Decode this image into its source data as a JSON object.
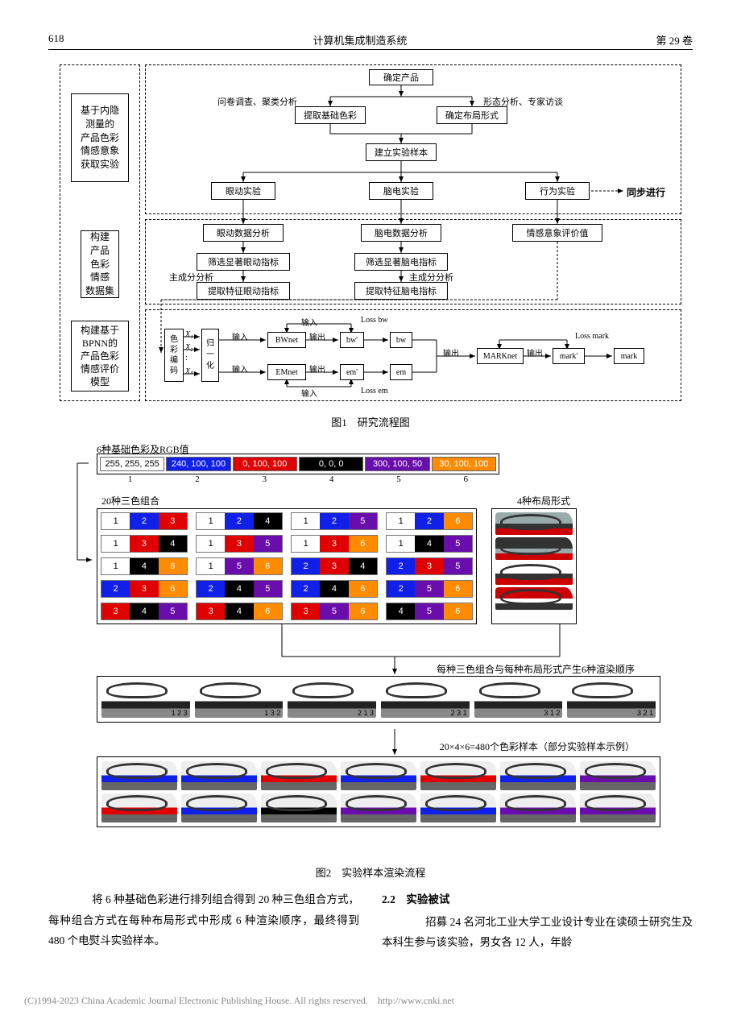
{
  "header": {
    "page_no": "618",
    "journal": "计算机集成制造系统",
    "vol": "第 29 卷"
  },
  "fig1": {
    "panel1_label": "基于内隐\n测量的\n产品色彩\n情感意象\n获取实验",
    "panel2_label": "构建\n产品\n色彩\n情感\n数据集",
    "panel3_label": "构建基于\nBPNN的\n产品色彩\n情感评价\n模型",
    "n_determine": "确定产品",
    "e_survey": "问卷调查、聚类分析",
    "e_shape": "形态分析、专家访谈",
    "n_extract_color": "提取基础色彩",
    "n_layout": "确定布局形式",
    "n_build_sample": "建立实验样本",
    "n_eye_exp": "眼动实验",
    "n_eeg_exp": "脑电实验",
    "n_behav_exp": "行为实验",
    "t_sync": "同步进行",
    "n_eye_data": "眼动数据分析",
    "n_eeg_data": "脑电数据分析",
    "n_emotion_val": "情感意象评价值",
    "n_eye_sig": "筛选显著眼动指标",
    "n_eeg_sig": "筛选显著脑电指标",
    "t_pca1": "主成分分析",
    "t_pca2": "主成分分析",
    "n_eye_feat": "提取特征眼动指标",
    "n_eeg_feat": "提取特征脑电指标",
    "n_color_code": "色\n彩\n编\n码",
    "n_norm": "归\n一\n化",
    "t_x1": "X₁",
    "t_x2": "X₂",
    "t_xn": "Xₙ",
    "t_dots": ":",
    "t_input": "输入",
    "t_output": "输出",
    "n_bwnet": "BWnet",
    "n_emnet": "EMnet",
    "n_marknet": "MARKnet",
    "n_bwp": "bw'",
    "n_bw": "bw",
    "n_emp": "em'",
    "n_em": "em",
    "n_markp": "mark'",
    "n_mark": "mark",
    "t_lossbw": "Loss bw",
    "t_lossem": "Loss em",
    "t_lossmark": "Loss mark",
    "caption": "图1　研究流程图"
  },
  "fig2": {
    "title_colors": "6种基础色彩及RGB值",
    "swatches": [
      {
        "rgb": "255, 255, 255",
        "hex": "#ffffff",
        "fg": "#000",
        "num": "1"
      },
      {
        "rgb": "240, 100, 100",
        "hex": "#1020e8",
        "fg": "#fff",
        "num": "2"
      },
      {
        "rgb": "0, 100, 100",
        "hex": "#e00000",
        "fg": "#fff",
        "num": "3"
      },
      {
        "rgb": "0, 0, 0",
        "hex": "#000000",
        "fg": "#fff",
        "num": "4"
      },
      {
        "rgb": "300, 100, 50",
        "hex": "#6a0dad",
        "fg": "#fff",
        "num": "5"
      },
      {
        "rgb": "30, 100, 100",
        "hex": "#ff8c00",
        "fg": "#fff",
        "num": "6"
      }
    ],
    "title_combos": "20种三色组合",
    "title_layouts": "4种布局形式",
    "combos": [
      [
        1,
        2,
        3
      ],
      [
        1,
        2,
        4
      ],
      [
        1,
        2,
        5
      ],
      [
        1,
        2,
        6
      ],
      [
        1,
        3,
        4
      ],
      [
        1,
        3,
        5
      ],
      [
        1,
        3,
        6
      ],
      [
        1,
        4,
        5
      ],
      [
        1,
        4,
        6
      ],
      [
        1,
        5,
        6
      ],
      [
        2,
        3,
        4
      ],
      [
        2,
        3,
        5
      ],
      [
        2,
        3,
        6
      ],
      [
        2,
        4,
        5
      ],
      [
        2,
        4,
        6
      ],
      [
        2,
        5,
        6
      ],
      [
        3,
        4,
        5
      ],
      [
        3,
        4,
        6
      ],
      [
        3,
        5,
        6
      ],
      [
        4,
        5,
        6
      ]
    ],
    "layout_colors": [
      [
        "#9aa",
        "#333",
        "#c00"
      ],
      [
        "#333",
        "#9aa",
        "#c00"
      ],
      [
        "#fff",
        "#333",
        "#c00"
      ],
      [
        "#c00",
        "#fff",
        "#333"
      ]
    ],
    "annot1": "每种三色组合与每种布局形式产生6种渲染顺序",
    "render_nums": [
      "1 2 3",
      "1 3 2",
      "2 1 3",
      "2 3 1",
      "3 1 2",
      "3 2 1"
    ],
    "annot2": "20×4×6=480个色彩样本（部分实验样本示例）",
    "sample_colors": [
      [
        "#1020e8",
        "#1020e8",
        "#e00000",
        "#1020e8",
        "#e00000",
        "#1020e8",
        "#6a0dad"
      ],
      [
        "#e00000",
        "#1020e8",
        "#000",
        "#6a0dad",
        "#1020e8",
        "#6a0dad",
        "#6a0dad"
      ]
    ],
    "caption": "图2　实验样本渲染流程"
  },
  "body": {
    "left": "　　将 6 种基础色彩进行排列组合得到 20 种三色组合方式，每种组合方式在每种布局形式中形成 6 种渲染顺序，最终得到 480 个电熨斗实验样本。",
    "right_head": "2.2　实验被试",
    "right": "　　招募 24 名河北工业大学工业设计专业在读硕士研究生及本科生参与该实验，男女各 12 人，年龄"
  },
  "footer": "(C)1994-2023 China Academic Journal Electronic Publishing House. All rights reserved.　http://www.cnki.net"
}
